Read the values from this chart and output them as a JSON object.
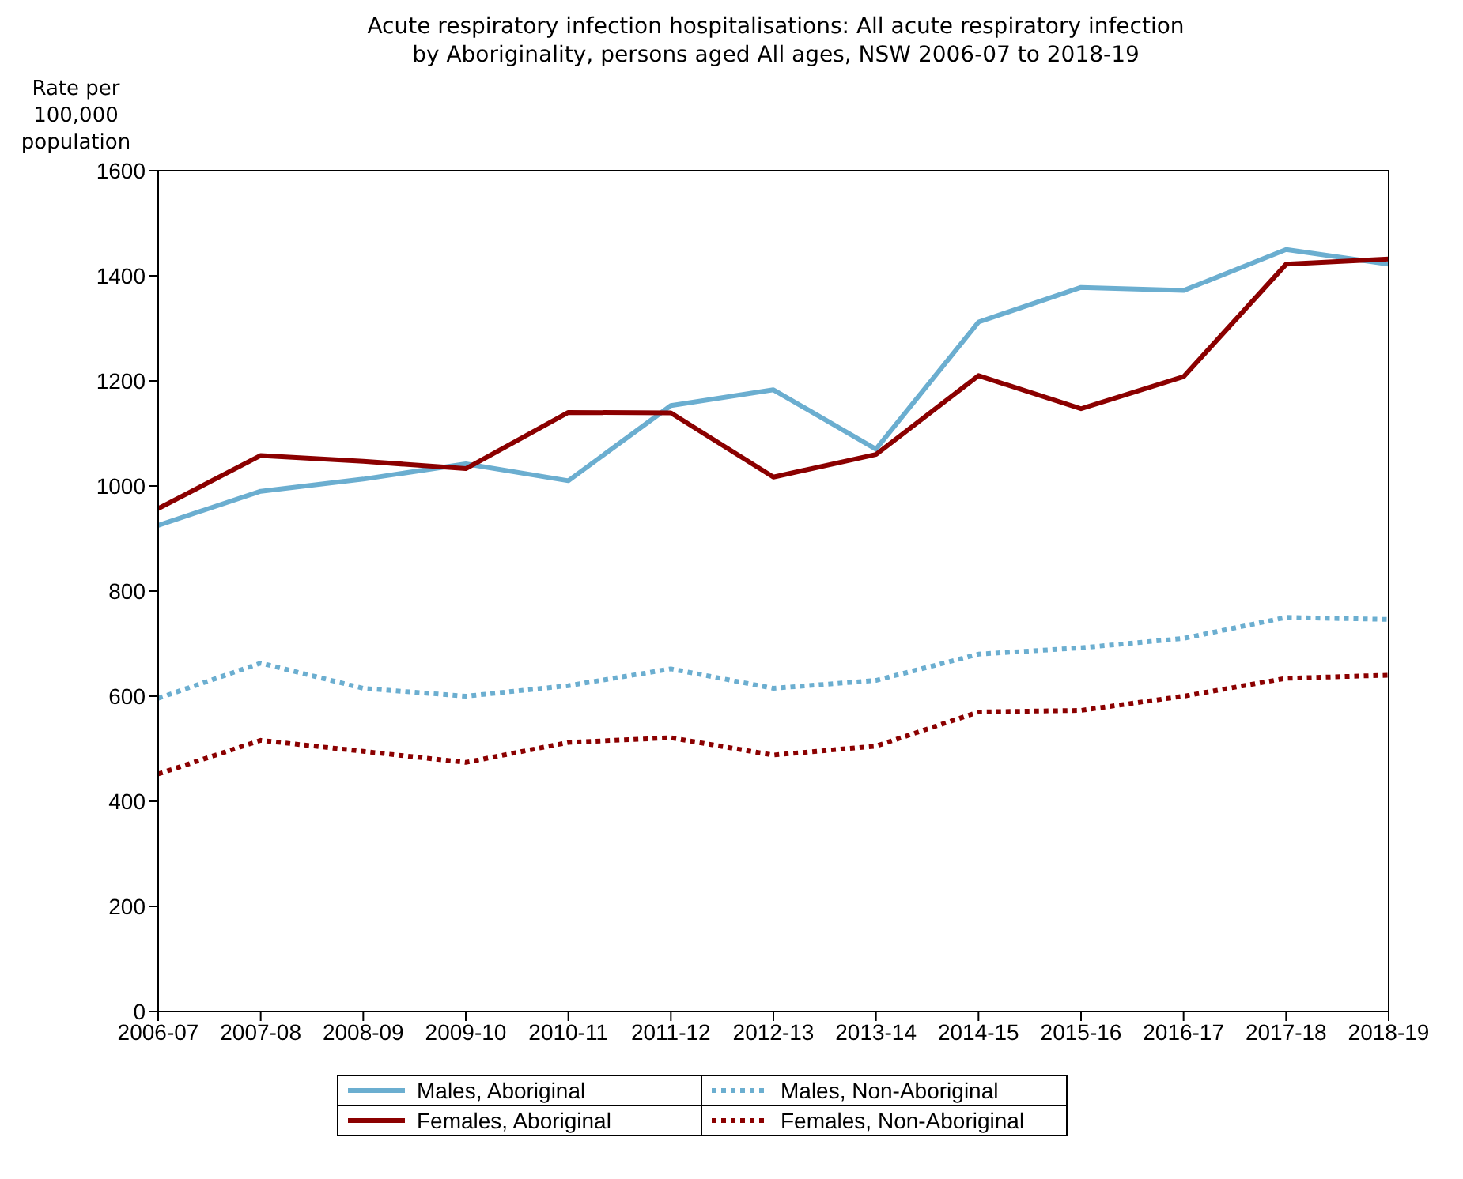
{
  "chart_data": {
    "type": "line",
    "title": "Acute respiratory infection hospitalisations: All acute respiratory infection\nby Aboriginality, persons aged All ages, NSW 2006-07 to 2018-19",
    "ylabel": "Rate per\n100,000\npopulation",
    "categories": [
      "2006-07",
      "2007-08",
      "2008-09",
      "2009-10",
      "2010-11",
      "2011-12",
      "2012-13",
      "2013-14",
      "2014-15",
      "2015-16",
      "2016-17",
      "2017-18",
      "2018-19"
    ],
    "series": [
      {
        "name": "Males, Aboriginal",
        "color": "#6baed0",
        "line_style": "solid",
        "values": [
          925,
          990,
          1013,
          1042,
          1010,
          1153,
          1183,
          1070,
          1312,
          1378,
          1372,
          1450,
          1422
        ]
      },
      {
        "name": "Males, Non-Aboriginal",
        "color": "#6baed0",
        "line_style": "dotted",
        "values": [
          596,
          663,
          615,
          600,
          620,
          652,
          615,
          630,
          680,
          692,
          710,
          750,
          746
        ]
      },
      {
        "name": "Females, Aboriginal",
        "color": "#8b0000",
        "line_style": "solid",
        "values": [
          957,
          1058,
          1047,
          1033,
          1140,
          1139,
          1017,
          1060,
          1210,
          1147,
          1208,
          1422,
          1432
        ]
      },
      {
        "name": "Females, Non-Aboriginal",
        "color": "#8b0000",
        "line_style": "dotted",
        "values": [
          452,
          516,
          495,
          474,
          512,
          521,
          488,
          505,
          570,
          573,
          600,
          634,
          640
        ]
      }
    ],
    "ylim": [
      0,
      1600
    ],
    "yticks": [
      0,
      200,
      400,
      600,
      800,
      1000,
      1200,
      1400,
      1600
    ],
    "grid": false,
    "legend": "bottom",
    "marker": "none"
  }
}
